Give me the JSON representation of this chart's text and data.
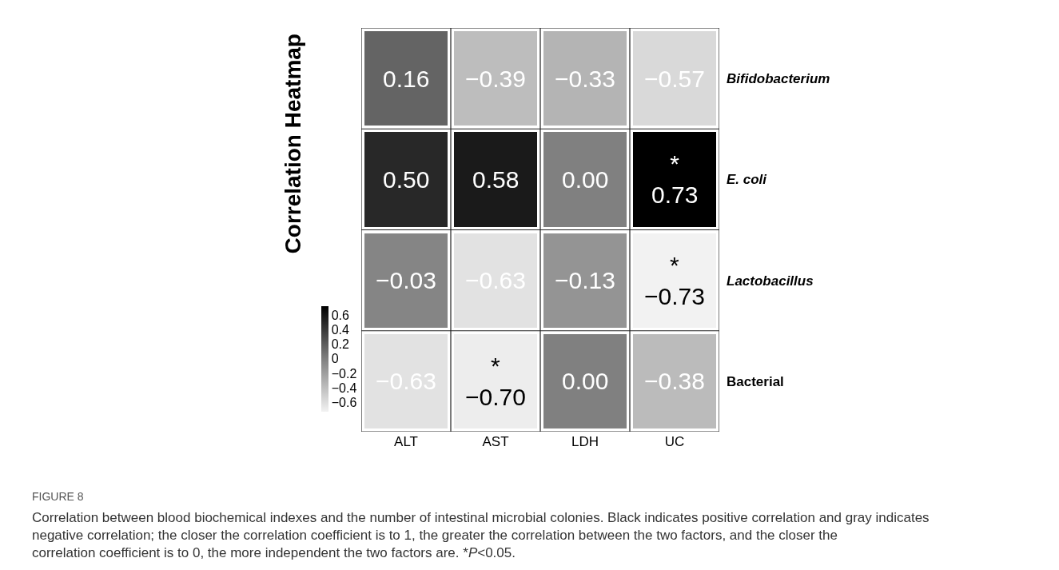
{
  "chart_data": {
    "type": "heatmap",
    "title": "Correlation Heatmap",
    "categories": [
      "ALT",
      "AST",
      "LDH",
      "UC"
    ],
    "y_categories": [
      "Bifidobacterium",
      "E. coli",
      "Lactobacillus",
      "Bacterial"
    ],
    "cells": [
      [
        0.16,
        -0.39,
        -0.33,
        -0.57
      ],
      [
        0.5,
        0.58,
        0.0,
        0.73
      ],
      [
        -0.03,
        -0.63,
        -0.13,
        -0.73
      ],
      [
        -0.63,
        -0.7,
        0.0,
        -0.38
      ]
    ],
    "cell_labels": [
      [
        "0.16",
        "−0.39",
        "−0.33",
        "−0.57"
      ],
      [
        "0.50",
        "0.58",
        "0.00",
        "*\n0.73"
      ],
      [
        "−0.03",
        "−0.63",
        "−0.13",
        "*\n−0.73"
      ],
      [
        "−0.63",
        "*\n−0.70",
        "0.00",
        "−0.38"
      ]
    ],
    "clim": [
      -0.73,
      0.73
    ],
    "cticks": [
      {
        "value": 0.6,
        "label": "0.6"
      },
      {
        "value": 0.4,
        "label": "0.4"
      },
      {
        "value": 0.2,
        "label": "0.2"
      },
      {
        "value": 0,
        "label": "0"
      },
      {
        "value": -0.2,
        "label": "−0.2"
      },
      {
        "value": -0.4,
        "label": "−0.4"
      },
      {
        "value": -0.6,
        "label": "−0.6"
      }
    ],
    "annotations": [
      "FIGURE 8",
      "Correlation between blood biochemical indexes and the number of intestinal microbial colonies. Black indicates positive correlation and gray indicates negative correlation; the closer the correlation coefficient is to 1, the greater the correlation between the two factors, and the closer the correlation coefficient is to 0, the more independent the two factors are. *P<0.05."
    ]
  }
}
